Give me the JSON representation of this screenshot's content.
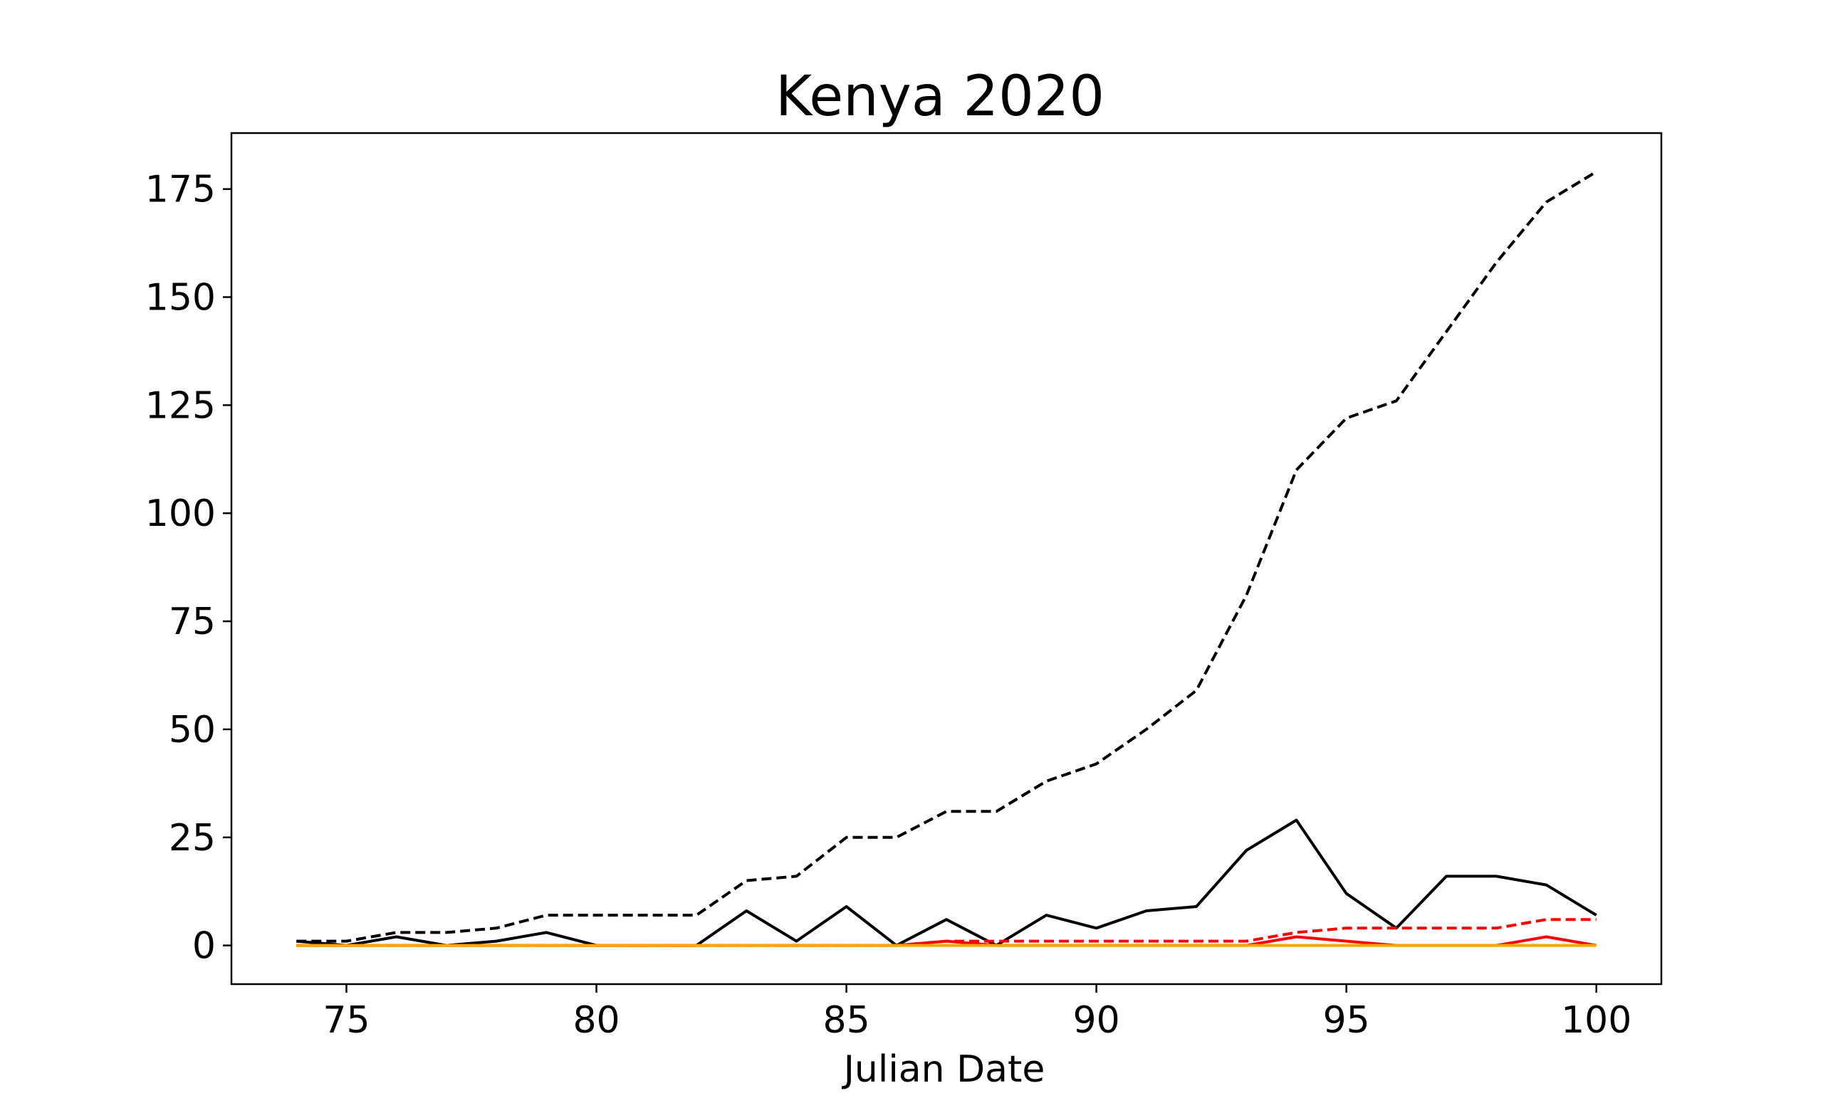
{
  "chart_data": {
    "type": "line",
    "title": "Kenya 2020",
    "xlabel": "Julian Date",
    "ylabel": "",
    "xlim": [
      72.7,
      101.3
    ],
    "ylim": [
      -8.95,
      187.95
    ],
    "xticks": [
      75,
      80,
      85,
      90,
      95,
      100
    ],
    "yticks": [
      0,
      25,
      50,
      75,
      100,
      125,
      150,
      175
    ],
    "grid": false,
    "legend": "none",
    "x": [
      74,
      75,
      76,
      77,
      78,
      79,
      80,
      81,
      82,
      83,
      84,
      85,
      86,
      87,
      88,
      89,
      90,
      91,
      92,
      93,
      94,
      95,
      96,
      97,
      98,
      99,
      100
    ],
    "series": [
      {
        "color": "#000000",
        "style": "dashed",
        "values": [
          1,
          1,
          3,
          3,
          4,
          7,
          7,
          7,
          7,
          15,
          16,
          25,
          25,
          31,
          31,
          38,
          42,
          50,
          59,
          81,
          110,
          122,
          126,
          142,
          158,
          172,
          179
        ]
      },
      {
        "color": "#000000",
        "style": "solid",
        "values": [
          1,
          0,
          2,
          0,
          1,
          3,
          0,
          0,
          0,
          8,
          1,
          9,
          0,
          6,
          0,
          7,
          4,
          8,
          9,
          22,
          29,
          12,
          4,
          16,
          16,
          14,
          7
        ]
      },
      {
        "color": "#ff0000",
        "style": "dashed",
        "values": [
          0,
          0,
          0,
          0,
          0,
          0,
          0,
          0,
          0,
          0,
          0,
          0,
          0,
          1,
          1,
          1,
          1,
          1,
          1,
          1,
          3,
          4,
          4,
          4,
          4,
          6,
          6
        ]
      },
      {
        "color": "#ff0000",
        "style": "solid",
        "values": [
          0,
          0,
          0,
          0,
          0,
          0,
          0,
          0,
          0,
          0,
          0,
          0,
          0,
          1,
          0,
          0,
          0,
          0,
          0,
          0,
          2,
          1,
          0,
          0,
          0,
          2,
          0
        ]
      },
      {
        "color": "#ffa500",
        "style": "solid",
        "values": [
          0,
          0,
          0,
          0,
          0,
          0,
          0,
          0,
          0,
          0,
          0,
          0,
          0,
          0,
          0,
          0,
          0,
          0,
          0,
          0,
          0,
          0,
          0,
          0,
          0,
          0,
          0
        ]
      }
    ]
  }
}
